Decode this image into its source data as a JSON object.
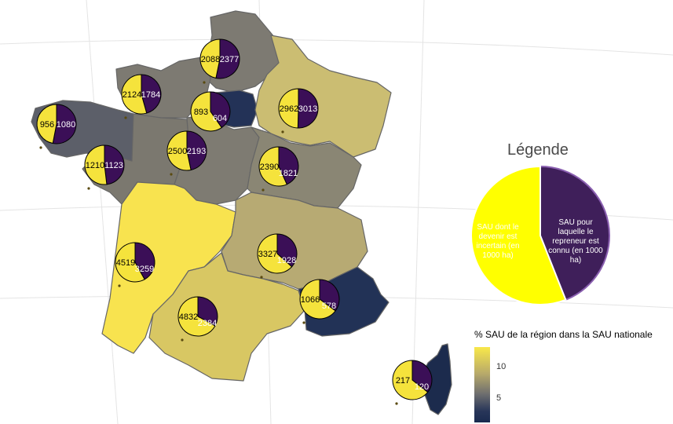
{
  "regions": [
    {
      "name": "Hauts-de-France",
      "fill": "#7d7a72",
      "uncertain": 2088,
      "known": 2377
    },
    {
      "name": "Normandie",
      "fill": "#7d7a72",
      "uncertain": 2124,
      "known": 1784
    },
    {
      "name": "Île-de-France",
      "fill": "#233257",
      "uncertain": 893,
      "known": 604
    },
    {
      "name": "Grand Est",
      "fill": "#cbbd72",
      "uncertain": 2962,
      "known": 3013
    },
    {
      "name": "Bretagne",
      "fill": "#5c5f69",
      "uncertain": 956,
      "known": 1080
    },
    {
      "name": "Pays de la Loire",
      "fill": "#7b786f",
      "uncertain": 1210,
      "known": 1123
    },
    {
      "name": "Centre-Val de Loire",
      "fill": "#7e7b72",
      "uncertain": 2500,
      "known": 2193
    },
    {
      "name": "Bourgogne-Franche-Comté",
      "fill": "#8a8674",
      "uncertain": 2390,
      "known": 1821
    },
    {
      "name": "Nouvelle-Aquitaine",
      "fill": "#f8e34f",
      "uncertain": 4519,
      "known": 3259
    },
    {
      "name": "Auvergne-Rhône-Alpes",
      "fill": "#b7aa73",
      "uncertain": 3327,
      "known": 1928
    },
    {
      "name": "Occitanie",
      "fill": "#d8c763",
      "uncertain": 4832,
      "known": 2384
    },
    {
      "name": "Provence-Alpes-Côte d'Azur",
      "fill": "#223256",
      "uncertain": 1066,
      "known": 578
    },
    {
      "name": "Corse",
      "fill": "#1c2b4d",
      "uncertain": 217,
      "known": 120
    }
  ],
  "legend": {
    "title": "Légende",
    "uncertain_label": "SAU dont le devenir est incertain (en 1000 ha)",
    "known_label": "SAU pour laquelle le repreneur est connu (en 1000 ha)",
    "uncertain_color": "#ffff00",
    "known_color": "#3f1f5a",
    "example_uncertain_share": 0.56
  },
  "colorbar": {
    "title": "% SAU de la région dans la SAU nationale",
    "ticks": [
      "10",
      "5"
    ],
    "colors": [
      "#f9e84a",
      "#b8aa6a",
      "#6f6f6f",
      "#283659",
      "#1a2a4f"
    ]
  },
  "pie_colors": {
    "uncertain": "#f5e33c",
    "known": "#3b0f57"
  }
}
